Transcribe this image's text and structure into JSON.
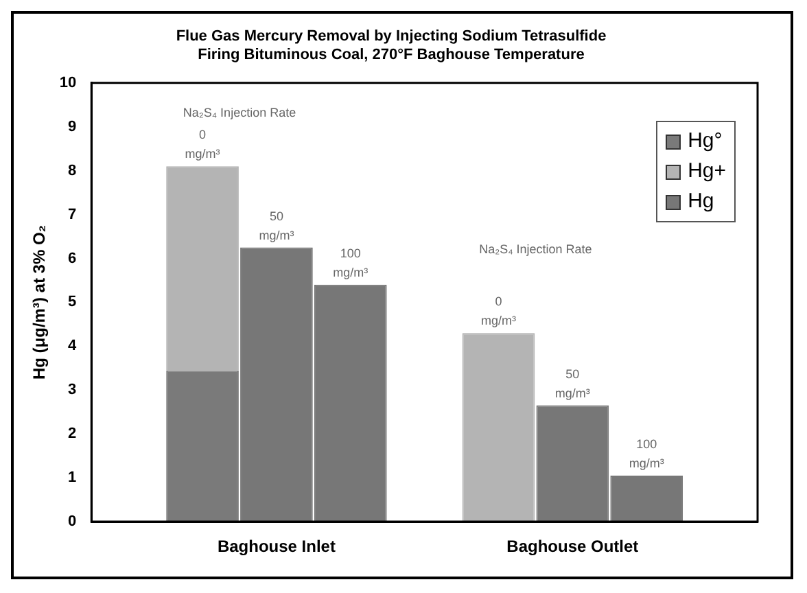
{
  "chart_data": {
    "type": "bar",
    "title": "Flue Gas Mercury Removal by Injecting Sodium Tetrasulfide\nFiring Bituminous Coal, 270°F Baghouse Temperature",
    "ylabel": "Hg (μg/m³) at 3% O₂",
    "categories": [
      null,
      "0 mg/m³",
      "50 mg/m³",
      "100 mg/m³",
      null,
      "0 mg/m³",
      "50 mg/m³",
      "100 mg/m³",
      null
    ],
    "series": [
      {
        "name": "Hg°",
        "color": "#7a7a7a",
        "values": [
          null,
          3.45,
          null,
          null,
          null,
          null,
          null,
          null,
          null
        ]
      },
      {
        "name": "Hg+",
        "color": "#b4b4b4",
        "values": [
          null,
          4.65,
          null,
          null,
          null,
          4.3,
          null,
          null,
          null
        ]
      },
      {
        "name": "Hg",
        "color": "#777777",
        "values": [
          null,
          null,
          6.25,
          5.4,
          null,
          null,
          2.65,
          1.05,
          null
        ]
      }
    ],
    "stacked": true,
    "ylim": [
      0,
      10
    ],
    "yticks": [
      0,
      1,
      2,
      3,
      4,
      5,
      6,
      7,
      8,
      9,
      10
    ],
    "grid": false,
    "legend": "top right",
    "annotations": [
      "Baghouse Inlet",
      "Baghouse Outlet",
      "Na₂S₄ Injection Rate",
      "Na₂S₄ Injection Rate"
    ]
  }
}
